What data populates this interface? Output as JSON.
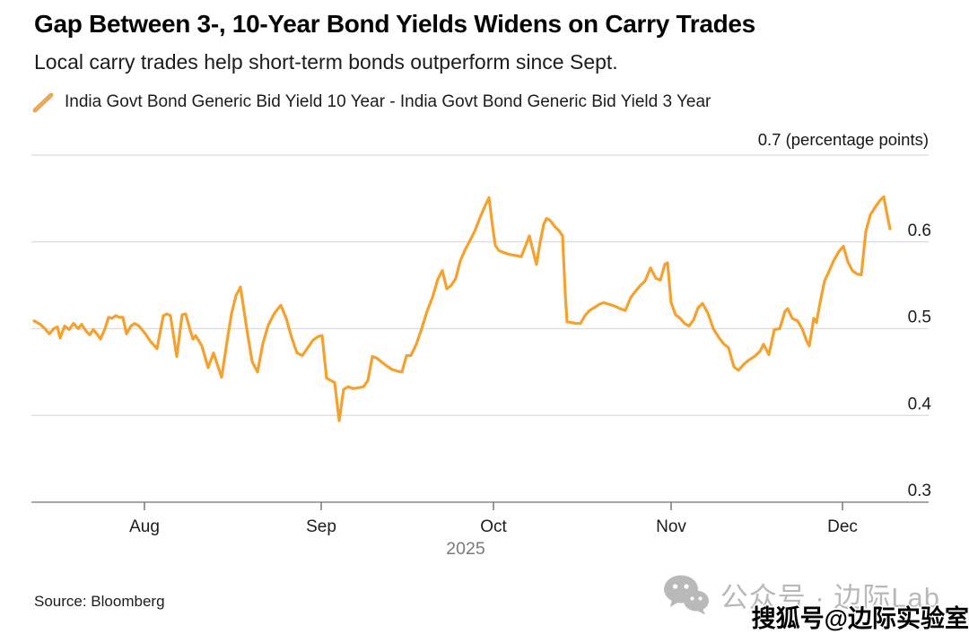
{
  "chart_data": {
    "type": "line",
    "title": "Gap Between 3-, 10-Year Bond Yields Widens on Carry Trades",
    "subtitle": "Local carry trades help short-term bonds outperform since Sept.",
    "unit_label": "0.7 (percentage points)",
    "source": "Source: Bloomberg",
    "legend": [
      {
        "name": "India Govt Bond Generic Bid Yield 10 Year - India Govt Bond Generic Bid Yield 3 Year",
        "marker": "slash",
        "color": "#E9A85C"
      }
    ],
    "line_color": "#F5A12E",
    "grid_color": "#dcdcdc",
    "axis_color": "#8a8a8a",
    "x_axis": {
      "year": "2025",
      "ticks": [
        "Aug",
        "Sep",
        "Oct",
        "Nov",
        "Dec"
      ],
      "tick_positions_pct": [
        12.6,
        32.3,
        51.5,
        71.3,
        90.4
      ]
    },
    "y_axis": {
      "range": [
        0.3,
        0.7
      ],
      "tick_step": 0.1,
      "tick_labels": [
        "0.6",
        "0.5",
        "0.4",
        "0.3"
      ],
      "unit": "percentage points",
      "grid": true,
      "labels_side": "right"
    },
    "series": [
      {
        "name": "10-Year minus 3-Year bid yield spread (percentage points)",
        "points": [
          [
            0.3,
            0.509
          ],
          [
            1.0,
            0.505
          ],
          [
            1.5,
            0.5
          ],
          [
            2.0,
            0.494
          ],
          [
            2.5,
            0.5
          ],
          [
            2.9,
            0.502
          ],
          [
            3.2,
            0.489
          ],
          [
            3.7,
            0.503
          ],
          [
            4.2,
            0.499
          ],
          [
            4.7,
            0.506
          ],
          [
            5.2,
            0.5
          ],
          [
            5.6,
            0.505
          ],
          [
            6.1,
            0.497
          ],
          [
            6.5,
            0.493
          ],
          [
            6.9,
            0.499
          ],
          [
            7.3,
            0.494
          ],
          [
            7.7,
            0.488
          ],
          [
            8.2,
            0.5
          ],
          [
            8.6,
            0.513
          ],
          [
            9.0,
            0.512
          ],
          [
            9.4,
            0.515
          ],
          [
            9.8,
            0.513
          ],
          [
            10.2,
            0.513
          ],
          [
            10.6,
            0.494
          ],
          [
            11.1,
            0.503
          ],
          [
            11.5,
            0.506
          ],
          [
            12.0,
            0.503
          ],
          [
            12.7,
            0.494
          ],
          [
            13.3,
            0.485
          ],
          [
            14.0,
            0.477
          ],
          [
            14.7,
            0.515
          ],
          [
            15.1,
            0.517
          ],
          [
            15.5,
            0.515
          ],
          [
            16.2,
            0.468
          ],
          [
            16.8,
            0.516
          ],
          [
            17.2,
            0.517
          ],
          [
            17.7,
            0.498
          ],
          [
            18.0,
            0.488
          ],
          [
            18.3,
            0.492
          ],
          [
            19.0,
            0.48
          ],
          [
            19.7,
            0.455
          ],
          [
            20.3,
            0.472
          ],
          [
            21.2,
            0.444
          ],
          [
            21.8,
            0.485
          ],
          [
            22.3,
            0.517
          ],
          [
            22.8,
            0.538
          ],
          [
            23.3,
            0.548
          ],
          [
            24.0,
            0.5
          ],
          [
            24.6,
            0.462
          ],
          [
            25.2,
            0.45
          ],
          [
            25.8,
            0.483
          ],
          [
            26.4,
            0.504
          ],
          [
            27.1,
            0.518
          ],
          [
            27.8,
            0.527
          ],
          [
            28.4,
            0.512
          ],
          [
            29.0,
            0.49
          ],
          [
            29.6,
            0.472
          ],
          [
            30.2,
            0.469
          ],
          [
            30.8,
            0.478
          ],
          [
            31.4,
            0.487
          ],
          [
            32.0,
            0.491
          ],
          [
            32.4,
            0.492
          ],
          [
            32.9,
            0.443
          ],
          [
            33.4,
            0.44
          ],
          [
            33.8,
            0.438
          ],
          [
            34.3,
            0.394
          ],
          [
            34.8,
            0.43
          ],
          [
            35.3,
            0.433
          ],
          [
            35.9,
            0.431
          ],
          [
            36.5,
            0.432
          ],
          [
            37.0,
            0.433
          ],
          [
            37.5,
            0.44
          ],
          [
            38.0,
            0.468
          ],
          [
            38.5,
            0.466
          ],
          [
            39.1,
            0.461
          ],
          [
            39.6,
            0.457
          ],
          [
            40.2,
            0.453
          ],
          [
            40.8,
            0.451
          ],
          [
            41.3,
            0.45
          ],
          [
            41.8,
            0.469
          ],
          [
            42.3,
            0.469
          ],
          [
            42.9,
            0.482
          ],
          [
            43.5,
            0.5
          ],
          [
            44.1,
            0.52
          ],
          [
            44.7,
            0.536
          ],
          [
            45.3,
            0.557
          ],
          [
            45.8,
            0.567
          ],
          [
            46.3,
            0.546
          ],
          [
            46.8,
            0.55
          ],
          [
            47.3,
            0.558
          ],
          [
            47.8,
            0.578
          ],
          [
            48.3,
            0.59
          ],
          [
            48.8,
            0.6
          ],
          [
            49.4,
            0.612
          ],
          [
            50.0,
            0.628
          ],
          [
            50.5,
            0.64
          ],
          [
            51.0,
            0.651
          ],
          [
            51.4,
            0.618
          ],
          [
            51.7,
            0.596
          ],
          [
            52.1,
            0.59
          ],
          [
            52.6,
            0.588
          ],
          [
            53.1,
            0.586
          ],
          [
            53.6,
            0.585
          ],
          [
            54.1,
            0.584
          ],
          [
            54.6,
            0.583
          ],
          [
            55.1,
            0.596
          ],
          [
            55.5,
            0.607
          ],
          [
            55.9,
            0.59
          ],
          [
            56.3,
            0.574
          ],
          [
            56.7,
            0.6
          ],
          [
            57.1,
            0.62
          ],
          [
            57.4,
            0.627
          ],
          [
            57.8,
            0.625
          ],
          [
            58.3,
            0.618
          ],
          [
            58.8,
            0.613
          ],
          [
            59.2,
            0.607
          ],
          [
            59.5,
            0.54
          ],
          [
            59.7,
            0.508
          ],
          [
            60.2,
            0.507
          ],
          [
            60.7,
            0.506
          ],
          [
            61.2,
            0.506
          ],
          [
            61.7,
            0.515
          ],
          [
            62.2,
            0.521
          ],
          [
            62.7,
            0.524
          ],
          [
            63.3,
            0.528
          ],
          [
            63.8,
            0.53
          ],
          [
            64.4,
            0.528
          ],
          [
            65.0,
            0.526
          ],
          [
            65.6,
            0.523
          ],
          [
            66.2,
            0.521
          ],
          [
            66.8,
            0.536
          ],
          [
            67.4,
            0.544
          ],
          [
            67.9,
            0.55
          ],
          [
            68.4,
            0.555
          ],
          [
            69.0,
            0.57
          ],
          [
            69.6,
            0.558
          ],
          [
            70.1,
            0.556
          ],
          [
            70.6,
            0.574
          ],
          [
            70.9,
            0.576
          ],
          [
            71.3,
            0.53
          ],
          [
            71.8,
            0.516
          ],
          [
            72.3,
            0.512
          ],
          [
            72.8,
            0.506
          ],
          [
            73.3,
            0.503
          ],
          [
            73.8,
            0.51
          ],
          [
            74.3,
            0.524
          ],
          [
            74.8,
            0.529
          ],
          [
            75.4,
            0.518
          ],
          [
            76.0,
            0.5
          ],
          [
            76.6,
            0.49
          ],
          [
            77.2,
            0.482
          ],
          [
            77.7,
            0.478
          ],
          [
            78.3,
            0.456
          ],
          [
            78.8,
            0.452
          ],
          [
            79.4,
            0.459
          ],
          [
            80.0,
            0.464
          ],
          [
            80.6,
            0.468
          ],
          [
            81.2,
            0.474
          ],
          [
            81.6,
            0.482
          ],
          [
            82.2,
            0.47
          ],
          [
            82.8,
            0.499
          ],
          [
            83.4,
            0.5
          ],
          [
            84.0,
            0.52
          ],
          [
            84.3,
            0.523
          ],
          [
            84.8,
            0.512
          ],
          [
            85.4,
            0.509
          ],
          [
            85.9,
            0.5
          ],
          [
            86.4,
            0.486
          ],
          [
            86.7,
            0.48
          ],
          [
            87.2,
            0.512
          ],
          [
            87.5,
            0.507
          ],
          [
            87.9,
            0.53
          ],
          [
            88.4,
            0.555
          ],
          [
            88.9,
            0.566
          ],
          [
            89.4,
            0.578
          ],
          [
            90.0,
            0.589
          ],
          [
            90.5,
            0.595
          ],
          [
            91.0,
            0.577
          ],
          [
            91.5,
            0.567
          ],
          [
            92.0,
            0.563
          ],
          [
            92.5,
            0.562
          ],
          [
            93.0,
            0.612
          ],
          [
            93.5,
            0.631
          ],
          [
            94.1,
            0.641
          ],
          [
            94.6,
            0.648
          ],
          [
            95.0,
            0.652
          ],
          [
            95.4,
            0.63
          ],
          [
            95.7,
            0.615
          ]
        ]
      }
    ]
  },
  "watermarks": {
    "wechat_label": "公众号 · 边际Lab",
    "sohu_label": "搜狐号@边际实验室"
  }
}
